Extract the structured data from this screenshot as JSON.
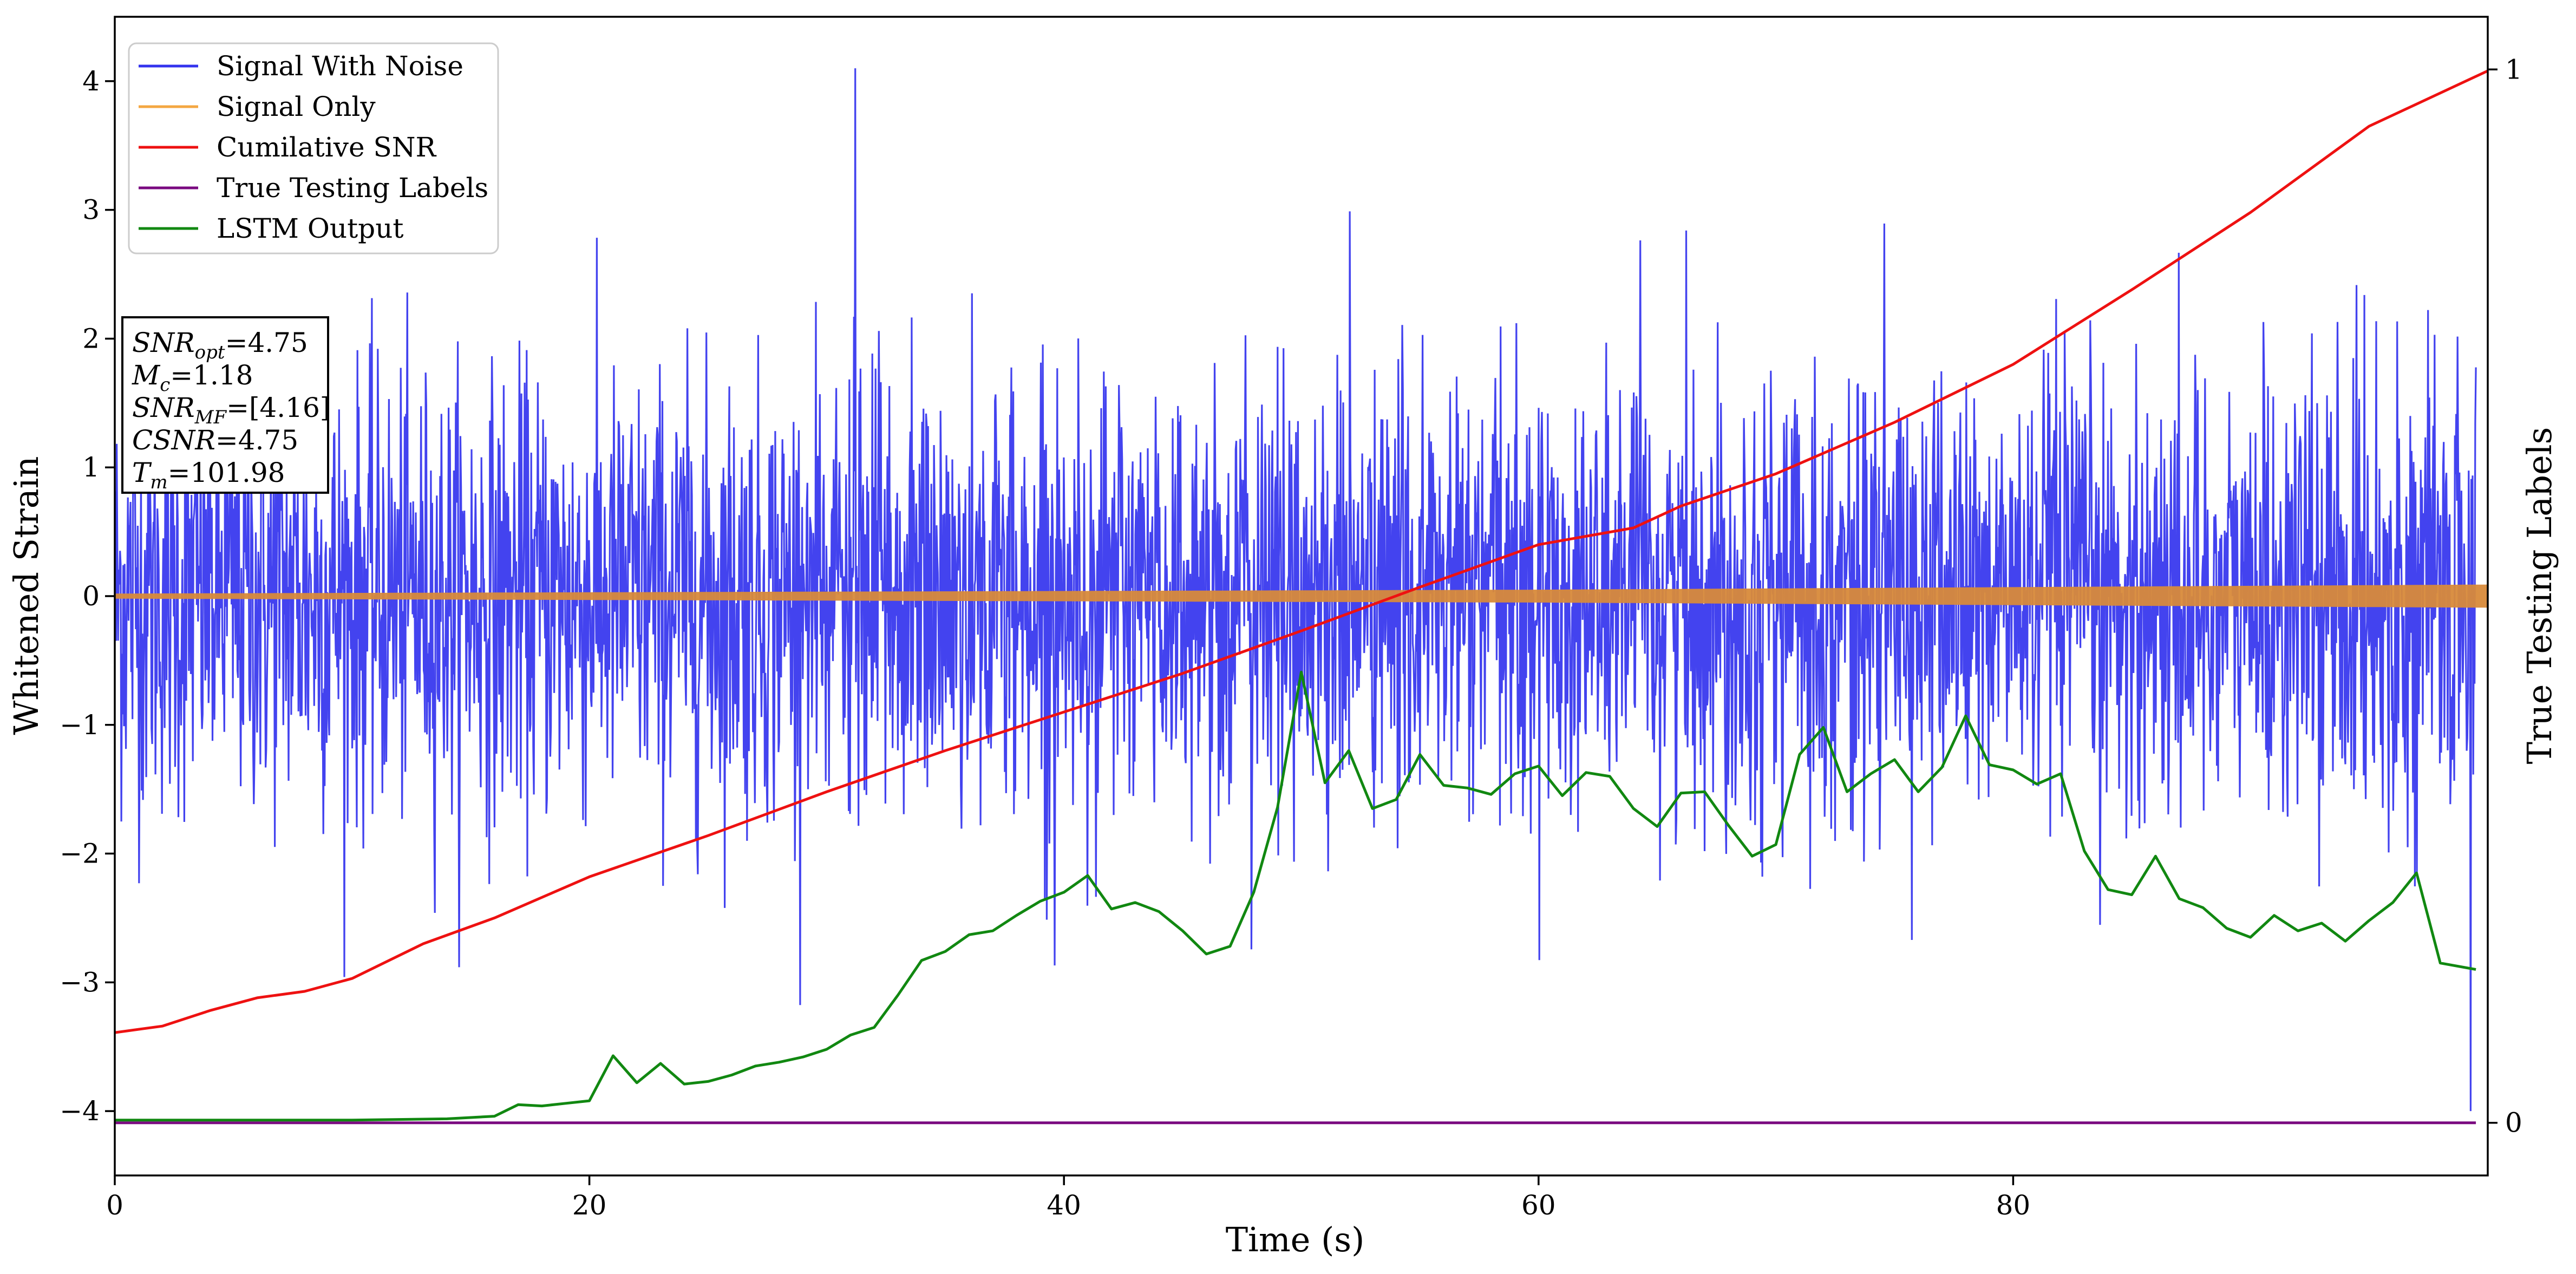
{
  "chart_data": {
    "type": "line",
    "title": "",
    "xlabel": "Time (s)",
    "ylabel": "Whitened Strain",
    "ylabel_right": "True Testing Labels",
    "xlim": [
      0,
      100
    ],
    "ylim": [
      -4.5,
      4.5
    ],
    "ylim_right": [
      -0.05,
      1.05
    ],
    "x_ticks": [
      0,
      20,
      40,
      60,
      80
    ],
    "y_ticks": [
      -4,
      -3,
      -2,
      -1,
      0,
      1,
      2,
      3,
      4
    ],
    "y_ticks_right": [
      0,
      1
    ],
    "grid": false,
    "legend_position": "top-left",
    "annotation_lines": [
      "SNR_opt=4.75",
      "M_c=1.18",
      "SNR_MF=[4.16]",
      "CSNR=4.75",
      "T_m=101.98"
    ],
    "series": [
      {
        "name": "Signal With Noise",
        "color": "#3333ee",
        "axis": "left",
        "description_stats": {
          "noise_std": 0.85,
          "min": -4.0,
          "max": 4.1,
          "peak_x": 31.2
        },
        "x": [
          0,
          20,
          40,
          60,
          80,
          99.5
        ],
        "y": [
          0,
          0,
          0,
          0,
          0,
          0
        ]
      },
      {
        "name": "Signal Only",
        "color": "#f4a742",
        "axis": "left",
        "envelope": {
          "x": [
            0,
            20,
            40,
            60,
            80,
            100
          ],
          "amplitude": [
            0.02,
            0.03,
            0.04,
            0.05,
            0.07,
            0.09
          ]
        }
      },
      {
        "name": "Cumilative SNR",
        "color": "#ee1111",
        "axis": "left",
        "x": [
          0,
          2,
          4,
          6,
          8,
          10,
          13,
          16,
          20,
          25,
          30,
          35,
          40,
          45,
          50,
          55,
          60,
          64,
          66,
          70,
          75,
          80,
          85,
          90,
          95,
          100
        ],
        "y": [
          -3.39,
          -3.34,
          -3.22,
          -3.12,
          -3.07,
          -2.97,
          -2.7,
          -2.5,
          -2.18,
          -1.86,
          -1.52,
          -1.2,
          -0.9,
          -0.6,
          -0.27,
          0.07,
          0.4,
          0.53,
          0.7,
          0.95,
          1.35,
          1.8,
          2.38,
          2.98,
          3.65,
          4.08
        ]
      },
      {
        "name": "True Testing Labels",
        "color": "#7a0a80",
        "axis": "right",
        "x": [
          0,
          99.5
        ],
        "y": [
          0,
          0
        ]
      },
      {
        "name": "LSTM Output",
        "color": "#118811",
        "axis": "left",
        "x": [
          0,
          10,
          14,
          16,
          17,
          18,
          19,
          20,
          21,
          22,
          23,
          24,
          25,
          26,
          27,
          28,
          29,
          30,
          31,
          32,
          33,
          34,
          35,
          36,
          37,
          38,
          39,
          40,
          41,
          42,
          43,
          44,
          45,
          46,
          47,
          48,
          49,
          50,
          51,
          52,
          53,
          54,
          55,
          56,
          57,
          58,
          59,
          60,
          61,
          62,
          63,
          64,
          65,
          66,
          67,
          68,
          69,
          70,
          71,
          72,
          73,
          74,
          75,
          76,
          77,
          78,
          79,
          80,
          81,
          82,
          83,
          84,
          85,
          86,
          87,
          88,
          89,
          90,
          91,
          92,
          93,
          94,
          95,
          96,
          97,
          98,
          99.5
        ],
        "y": [
          -4.07,
          -4.07,
          -4.06,
          -4.04,
          -3.95,
          -3.96,
          -3.94,
          -3.92,
          -3.57,
          -3.78,
          -3.63,
          -3.79,
          -3.77,
          -3.72,
          -3.65,
          -3.62,
          -3.58,
          -3.52,
          -3.41,
          -3.35,
          -3.1,
          -2.83,
          -2.76,
          -2.63,
          -2.6,
          -2.48,
          -2.37,
          -2.3,
          -2.17,
          -2.43,
          -2.38,
          -2.45,
          -2.6,
          -2.78,
          -2.72,
          -2.3,
          -1.64,
          -0.59,
          -1.45,
          -1.2,
          -1.65,
          -1.58,
          -1.23,
          -1.47,
          -1.49,
          -1.54,
          -1.38,
          -1.32,
          -1.55,
          -1.37,
          -1.4,
          -1.65,
          -1.79,
          -1.53,
          -1.52,
          -1.78,
          -2.02,
          -1.93,
          -1.23,
          -1.02,
          -1.52,
          -1.38,
          -1.27,
          -1.52,
          -1.33,
          -0.93,
          -1.31,
          -1.35,
          -1.46,
          -1.38,
          -1.98,
          -2.28,
          -2.32,
          -2.02,
          -2.35,
          -2.42,
          -2.58,
          -2.65,
          -2.48,
          -2.6,
          -2.54,
          -2.68,
          -2.52,
          -2.38,
          -2.15,
          -2.85,
          -2.9
        ]
      }
    ]
  }
}
